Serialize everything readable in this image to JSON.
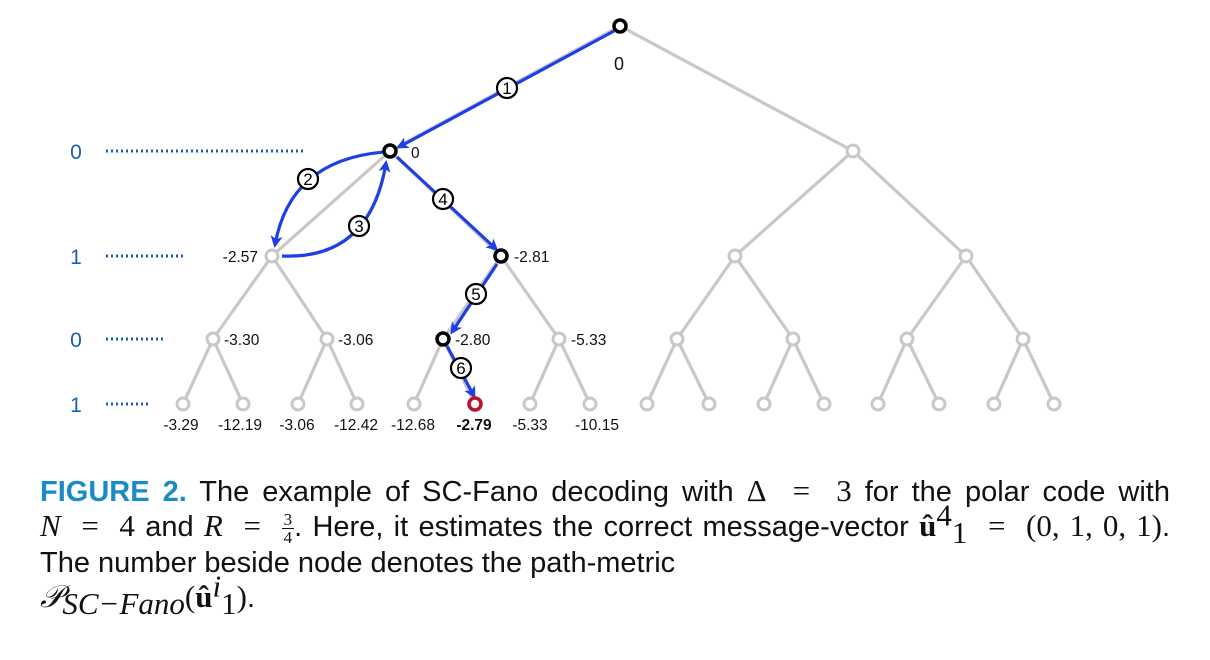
{
  "figure": {
    "root_metric": "0",
    "level_labels": [
      "0",
      "1",
      "0",
      "1"
    ],
    "node_metrics": {
      "l1_left": "0",
      "l2_0": "-2.57",
      "l2_1": "-2.81",
      "l3_0": "-3.30",
      "l3_1": "-3.06",
      "l3_2": "-2.80",
      "l3_3": "-5.33"
    },
    "leaf_metrics": [
      "-3.29",
      "-12.19",
      "-3.06",
      "-12.42",
      "-12.68",
      "-2.79",
      "-5.33",
      "-10.15"
    ],
    "steps": [
      "1",
      "2",
      "3",
      "4",
      "5",
      "6"
    ],
    "colors": {
      "active_path": "#1f3fe6",
      "tree": "#c8c8c8",
      "node_active": "#000000",
      "node_final": "#c0102a",
      "level_label": "#1a5fb4"
    }
  },
  "caption": {
    "label": "FIGURE 2.",
    "t1": " The example of SC-Fano decoding with ",
    "delta_sym": "Δ",
    "eq": "=",
    "delta_val": "3",
    "t2": " for the polar code with ",
    "N_sym": "N",
    "N_val": "4",
    "t3": " and ",
    "R_sym": "R",
    "R_num": "3",
    "R_den": "4",
    "t4": ". Here, it estimates the correct message-vector ",
    "u_sym": "û",
    "u_sup": "4",
    "u_sub": "1",
    "u_val": "(0, 1, 0, 1)",
    "t5": ". The number beside node denotes the path-metric ",
    "P_sym": "𝒫",
    "P_sub": "SC−Fano",
    "P_arg_sup": "i",
    "P_arg_sub": "1",
    "t6": "."
  }
}
